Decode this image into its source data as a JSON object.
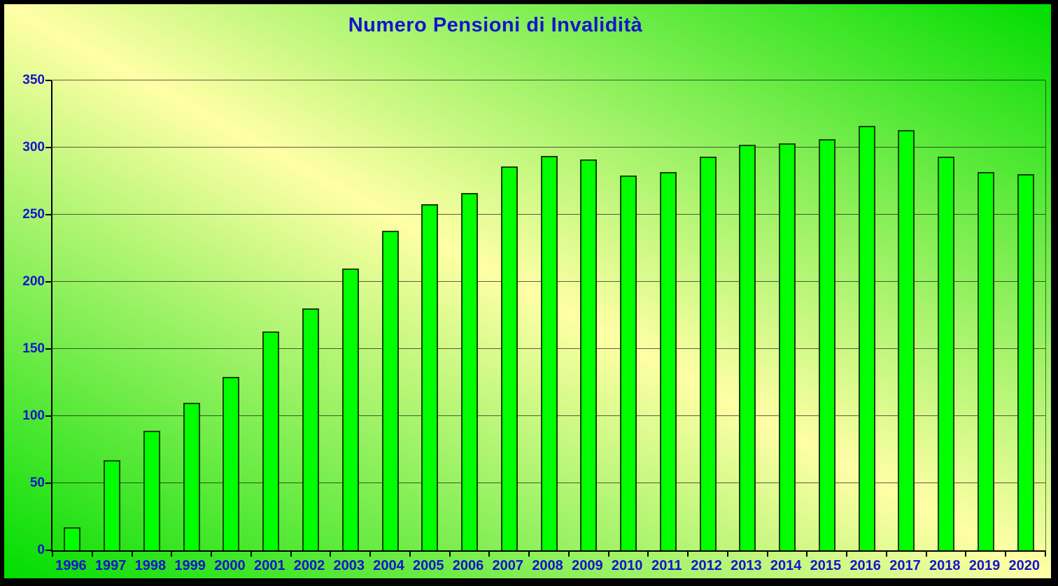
{
  "title": "Numero Pensioni di Invalidità",
  "colors": {
    "frame": "#000000",
    "text_blue": "#1414cc",
    "bar_fill": "#00ff00",
    "bar_border": "#164000",
    "gridline": "rgba(0,0,0,0.62)",
    "background_gradient": {
      "angle_deg": 28.7,
      "edge_color": "#00dd00",
      "center_color": "#ffffa6"
    }
  },
  "chart_data": {
    "type": "bar",
    "title": "Numero Pensioni di Invalidità",
    "categories": [
      "1996",
      "1997",
      "1998",
      "1999",
      "2000",
      "2001",
      "2002",
      "2003",
      "2004",
      "2005",
      "2006",
      "2007",
      "2008",
      "2009",
      "2010",
      "2011",
      "2012",
      "2013",
      "2014",
      "2015",
      "2016",
      "2017",
      "2018",
      "2019",
      "2020"
    ],
    "values": [
      17,
      67,
      89,
      110,
      129,
      163,
      180,
      210,
      238,
      258,
      266,
      286,
      294,
      291,
      279,
      282,
      293,
      302,
      303,
      306,
      316,
      313,
      293,
      282,
      280
    ],
    "xlabel": "",
    "ylabel": "",
    "ylim": [
      0,
      350
    ],
    "ytick_interval": 50,
    "yticks": [
      "0",
      "50",
      "100",
      "150",
      "200",
      "250",
      "300",
      "350"
    ],
    "grid": true,
    "legend": false
  }
}
